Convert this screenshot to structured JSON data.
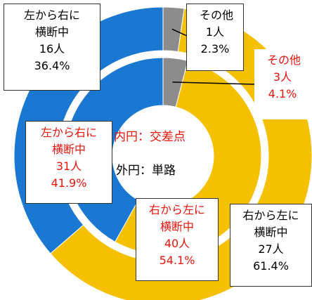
{
  "chart_data": {
    "type": "donut",
    "categories": [
      "その他",
      "右から左に横断中",
      "左から右に横断中"
    ],
    "colors": [
      "#8c8c8c",
      "#f5c000",
      "#1a78d2"
    ],
    "series": [
      {
        "name": "内円：交差点",
        "color": "#e8140c",
        "values": [
          3,
          40,
          31
        ],
        "value_labels": [
          "3人",
          "40人",
          "31人"
        ],
        "percents": [
          4.1,
          54.1,
          41.9
        ],
        "percent_labels": [
          "4.1%",
          "54.1%",
          "41.9%"
        ]
      },
      {
        "name": "外円：単路",
        "color": "#000000",
        "values": [
          1,
          27,
          16
        ],
        "value_labels": [
          "1人",
          "27人",
          "16人"
        ],
        "percents": [
          2.3,
          61.4,
          36.4
        ],
        "percent_labels": [
          "2.3%",
          "61.4%",
          "36.4%"
        ]
      }
    ]
  }
}
